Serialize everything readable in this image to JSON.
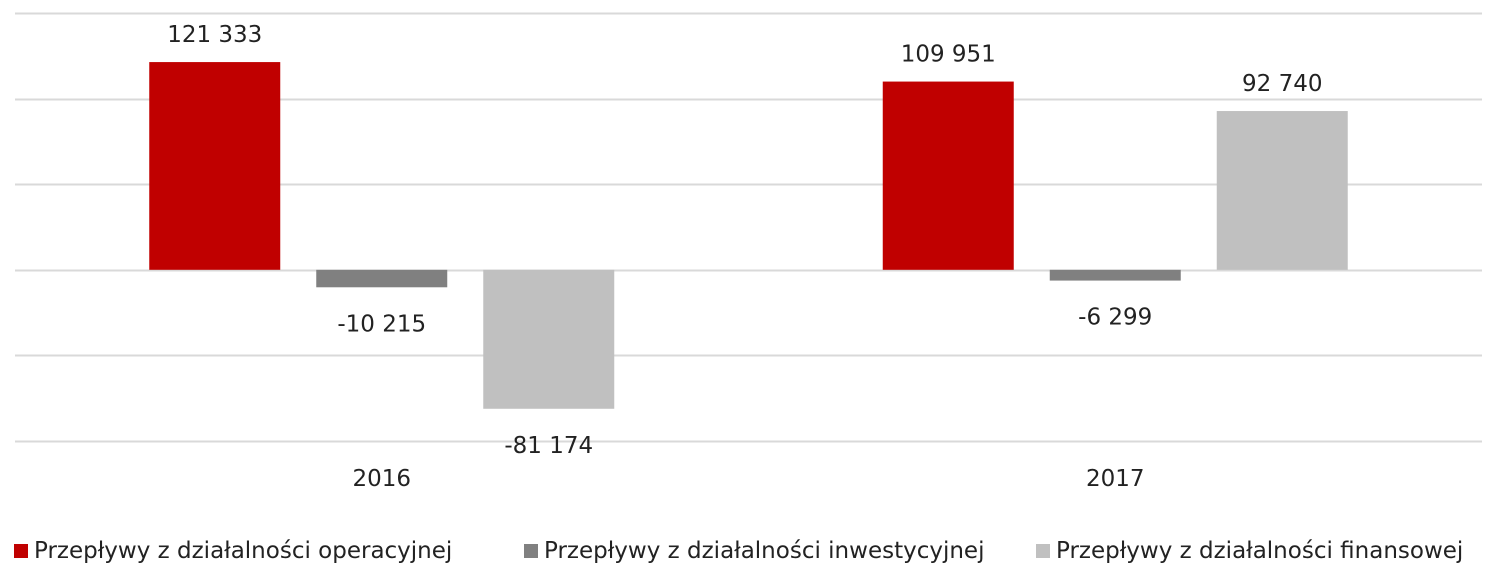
{
  "chart_data": {
    "type": "bar",
    "categories": [
      "2016",
      "2017"
    ],
    "series": [
      {
        "name": "Przepływy z działalności operacyjnej",
        "values": [
          121333,
          109951
        ],
        "labels": [
          "121 333",
          "109 951"
        ],
        "color": "#c00000"
      },
      {
        "name": "Przepływy z działalności inwestycyjnej",
        "values": [
          -10215,
          -6299
        ],
        "labels": [
          "-10 215",
          "-6 299"
        ],
        "color": "#808080"
      },
      {
        "name": "Przepływy z działalności finansowej",
        "values": [
          -81174,
          92740
        ],
        "labels": [
          "-81 174",
          "92 740"
        ],
        "color": "#c0c0c0"
      }
    ],
    "ylim": [
      -100000,
      150000
    ],
    "grid": true,
    "legend": "bottom",
    "title": "",
    "xlabel": "",
    "ylabel": ""
  }
}
